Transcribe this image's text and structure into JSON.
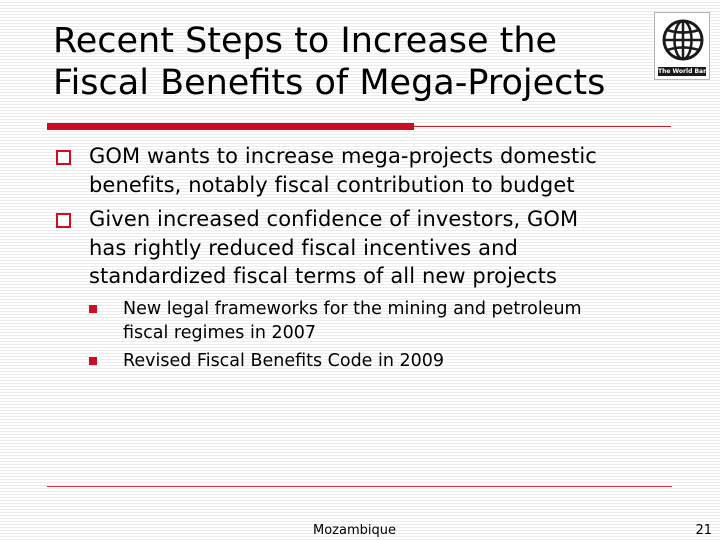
{
  "slide": {
    "title_lines": [
      "Recent Steps to Increase the",
      "Fiscal Benefits of Mega-Projects"
    ],
    "logo": {
      "text": "The World Bank",
      "icon": "world-bank-globe-icon"
    },
    "bullets": [
      {
        "lines": [
          "GOM wants to increase mega-projects domestic",
          "benefits, notably fiscal contribution to budget"
        ]
      },
      {
        "lines": [
          "Given increased confidence of investors, GOM",
          "has rightly reduced fiscal incentives and",
          "standardized fiscal terms of all new projects"
        ]
      }
    ],
    "subbullets": [
      {
        "lines": [
          "New legal frameworks for the mining and petroleum",
          "fiscal regimes in 2007"
        ]
      },
      {
        "lines": [
          "Revised Fiscal Benefits Code in 2009"
        ]
      }
    ],
    "footer": {
      "label": "Mozambique",
      "page_number": "21"
    },
    "colors": {
      "accent_red": "#cc0c22",
      "text": "#000000",
      "background": "#ffffff"
    }
  }
}
